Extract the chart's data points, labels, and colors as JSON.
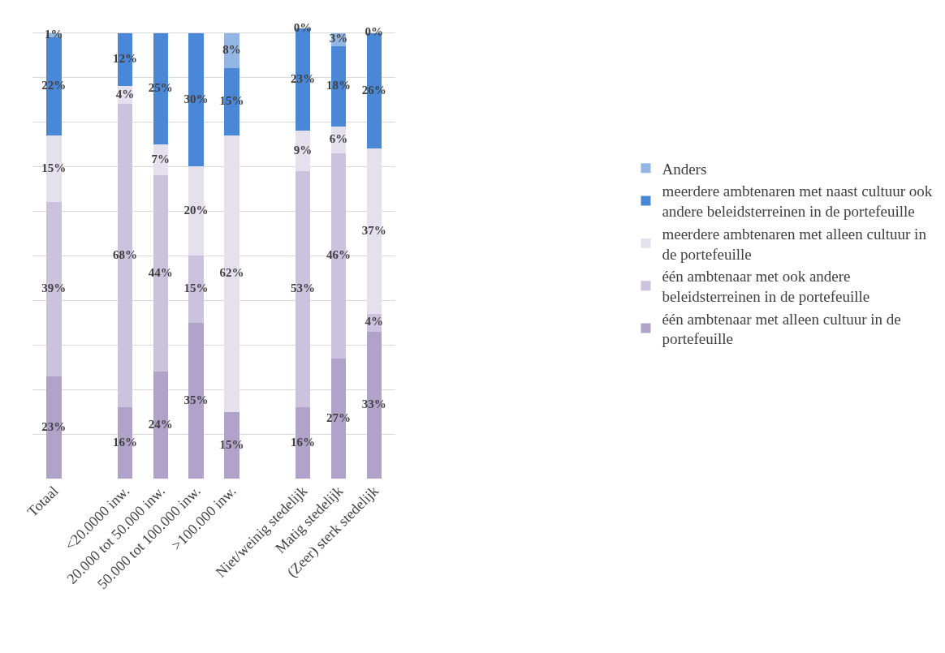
{
  "chart_data": {
    "type": "bar",
    "stacked": true,
    "categories": [
      "Totaal",
      null,
      "<20.0000 inw.",
      "20.000 tot 50.000 inw.",
      "50.000 tot 100.000 inw.",
      ">100.000 inw.",
      null,
      "Niet/weinig stedelijk",
      "Matig stedelijk",
      "(Zeer) sterk stedelijk"
    ],
    "series": [
      {
        "name": "één ambtenaar met alleen cultuur in de portefeuille",
        "color": "#b1a2c9",
        "values": [
          23,
          null,
          16,
          24,
          35,
          15,
          null,
          16,
          27,
          33
        ],
        "value_labels": [
          "23%",
          null,
          "16%",
          "24%",
          "35%",
          "15%",
          null,
          "16%",
          "27%",
          "33%"
        ]
      },
      {
        "name": "één ambtenaar met ook andere beleidsterreinen in de portefeuille",
        "color": "#cbc2de",
        "values": [
          39,
          null,
          68,
          44,
          15,
          null,
          null,
          53,
          46,
          4
        ],
        "value_labels": [
          "39%",
          null,
          "68%",
          "44%",
          "15%",
          null,
          null,
          "53%",
          "46%",
          "4%"
        ]
      },
      {
        "name": "meerdere ambtenaren met alleen cultuur in de portefeuille",
        "color": "#e5e0ee",
        "values": [
          15,
          null,
          4,
          7,
          20,
          62,
          null,
          9,
          6,
          37
        ],
        "value_labels": [
          "15%",
          null,
          "4%",
          "7%",
          "20%",
          "62%",
          null,
          "9%",
          "6%",
          "37%"
        ]
      },
      {
        "name": "meerdere ambtenaren met naast cultuur ook andere beleidsterreinen in de portefeuille",
        "color": "#4a87d6",
        "values": [
          22,
          null,
          12,
          25,
          30,
          15,
          null,
          23,
          18,
          26
        ],
        "value_labels": [
          "22%",
          null,
          "12%",
          "25%",
          "30%",
          "15%",
          null,
          "23%",
          "18%",
          "26%"
        ]
      },
      {
        "name": "Anders",
        "color": "#93b6e5",
        "values": [
          1,
          null,
          null,
          null,
          null,
          8,
          null,
          0,
          3,
          0
        ],
        "value_labels": [
          "1%",
          null,
          null,
          null,
          null,
          "8%",
          null,
          "0%",
          "3%",
          "0%"
        ]
      }
    ],
    "ylim": [
      0,
      101
    ],
    "tick_labels": "x",
    "grid": "y",
    "legend": "right"
  }
}
